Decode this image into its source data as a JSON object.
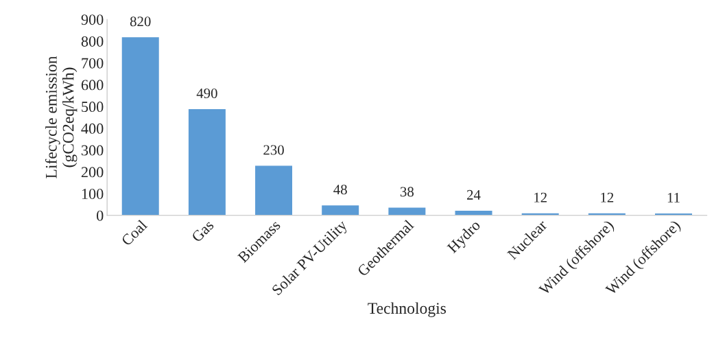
{
  "chart_data": {
    "type": "bar",
    "xlabel": "Technologis",
    "ylabel": "Lifecycle emission\n(gCO2eq/kWh)",
    "categories": [
      "Coal",
      "Gas",
      "Biomass",
      "Solar PV-Utility",
      "Geothermal",
      "Hydro",
      "Nuclear",
      "Wind (offshore)",
      "Wind (offshore)"
    ],
    "values": [
      820,
      490,
      230,
      48,
      38,
      24,
      12,
      12,
      11
    ],
    "color": "#5b9bd5",
    "ylim": [
      0,
      900
    ],
    "yticks": [
      0,
      100,
      200,
      300,
      400,
      500,
      600,
      700,
      800,
      900
    ],
    "data_labels": true,
    "grid": false,
    "legend": false
  }
}
